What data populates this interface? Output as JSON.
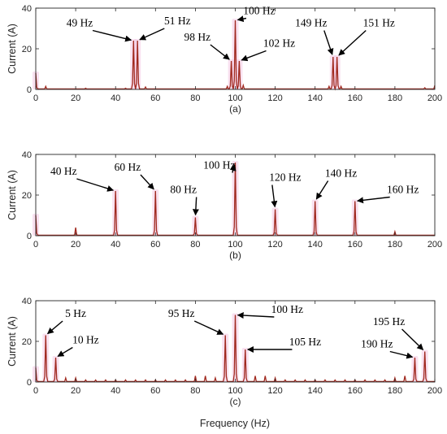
{
  "xlabel": "Frequency (Hz)",
  "colors": {
    "line": "#a0281e",
    "glow": "#f4c8e4",
    "axis": "#262626",
    "arrow": "#000000"
  },
  "chart_data": [
    {
      "type": "line",
      "caption": "(a)",
      "ylabel": "Current (A)",
      "xlim": [
        0,
        200
      ],
      "ylim": [
        0,
        40
      ],
      "xticks": [
        "0",
        "20",
        "40",
        "60",
        "80",
        "100",
        "120",
        "140",
        "160",
        "180",
        "200"
      ],
      "yticks": [
        "0",
        "20",
        "40"
      ],
      "peaks": [
        [
          0,
          8
        ],
        [
          5,
          1.5
        ],
        [
          25,
          0.6
        ],
        [
          45,
          0.6
        ],
        [
          49,
          24
        ],
        [
          51,
          24
        ],
        [
          55,
          1.2
        ],
        [
          96,
          1.5
        ],
        [
          98,
          14
        ],
        [
          100,
          34
        ],
        [
          102,
          14
        ],
        [
          104,
          2
        ],
        [
          147,
          1.5
        ],
        [
          149,
          16
        ],
        [
          151,
          16
        ],
        [
          153,
          1.5
        ],
        [
          195,
          0.8
        ],
        [
          200,
          2
        ]
      ],
      "annotations": [
        {
          "text": "49 Hz",
          "freq": 49,
          "y": 24,
          "tx": 22,
          "ty": 31
        },
        {
          "text": "51 Hz",
          "freq": 51,
          "y": 24,
          "tx": 71,
          "ty": 32
        },
        {
          "text": "100 Hz",
          "freq": 100,
          "y": 34,
          "tx": 112,
          "ty": 37
        },
        {
          "text": "98 Hz",
          "freq": 98,
          "y": 14,
          "tx": 81,
          "ty": 24
        },
        {
          "text": "102 Hz",
          "freq": 102,
          "y": 14,
          "tx": 122,
          "ty": 21
        },
        {
          "text": "149 Hz",
          "freq": 149,
          "y": 16,
          "tx": 138,
          "ty": 31
        },
        {
          "text": "151 Hz",
          "freq": 151,
          "y": 16,
          "tx": 172,
          "ty": 31
        }
      ]
    },
    {
      "type": "line",
      "caption": "(b)",
      "ylabel": "Current (A)",
      "xlim": [
        0,
        200
      ],
      "ylim": [
        0,
        40
      ],
      "xticks": [
        "0",
        "20",
        "40",
        "60",
        "80",
        "100",
        "120",
        "140",
        "160",
        "180",
        "200"
      ],
      "yticks": [
        "0",
        "20",
        "40"
      ],
      "peaks": [
        [
          0,
          10
        ],
        [
          20,
          4
        ],
        [
          40,
          22
        ],
        [
          60,
          22
        ],
        [
          80,
          9
        ],
        [
          100,
          36
        ],
        [
          120,
          13
        ],
        [
          140,
          17
        ],
        [
          160,
          17
        ],
        [
          180,
          2
        ]
      ],
      "annotations": [
        {
          "text": "40 Hz",
          "freq": 40,
          "y": 22,
          "tx": 14,
          "ty": 30
        },
        {
          "text": "60 Hz",
          "freq": 60,
          "y": 22,
          "tx": 46,
          "ty": 32
        },
        {
          "text": "80 Hz",
          "freq": 80,
          "y": 9,
          "tx": 74,
          "ty": 21
        },
        {
          "text": "100 Hz",
          "freq": 100,
          "y": 36,
          "tx": 92,
          "ty": 33
        },
        {
          "text": "120 Hz",
          "freq": 120,
          "y": 13,
          "tx": 125,
          "ty": 27
        },
        {
          "text": "140 Hz",
          "freq": 140,
          "y": 17,
          "tx": 153,
          "ty": 29
        },
        {
          "text": "160 Hz",
          "freq": 160,
          "y": 17,
          "tx": 184,
          "ty": 21
        }
      ]
    },
    {
      "type": "line",
      "caption": "(c)",
      "ylabel": "Current (A)",
      "xlim": [
        0,
        200
      ],
      "ylim": [
        0,
        40
      ],
      "xticks": [
        "0",
        "20",
        "40",
        "60",
        "80",
        "100",
        "120",
        "140",
        "160",
        "180",
        "200"
      ],
      "yticks": [
        "0",
        "20",
        "40"
      ],
      "peaks": [
        [
          0,
          7
        ],
        [
          5,
          23
        ],
        [
          10,
          12
        ],
        [
          15,
          2
        ],
        [
          20,
          2
        ],
        [
          25,
          1
        ],
        [
          30,
          1
        ],
        [
          35,
          1
        ],
        [
          40,
          1
        ],
        [
          45,
          1
        ],
        [
          50,
          1
        ],
        [
          55,
          1
        ],
        [
          60,
          1
        ],
        [
          65,
          1
        ],
        [
          70,
          1
        ],
        [
          75,
          1
        ],
        [
          80,
          3
        ],
        [
          85,
          3
        ],
        [
          90,
          2
        ],
        [
          95,
          23
        ],
        [
          100,
          33
        ],
        [
          105,
          16
        ],
        [
          110,
          3
        ],
        [
          115,
          3
        ],
        [
          120,
          2
        ],
        [
          125,
          1
        ],
        [
          130,
          1
        ],
        [
          135,
          1
        ],
        [
          140,
          1
        ],
        [
          145,
          1
        ],
        [
          150,
          1
        ],
        [
          155,
          1
        ],
        [
          160,
          1
        ],
        [
          165,
          1
        ],
        [
          170,
          1
        ],
        [
          175,
          1
        ],
        [
          180,
          2
        ],
        [
          185,
          3
        ],
        [
          190,
          12
        ],
        [
          195,
          15
        ]
      ],
      "annotations": [
        {
          "text": "5 Hz",
          "freq": 5,
          "y": 23,
          "tx": 20,
          "ty": 32
        },
        {
          "text": "10 Hz",
          "freq": 10,
          "y": 12,
          "tx": 25,
          "ty": 19
        },
        {
          "text": "95 Hz",
          "freq": 95,
          "y": 23,
          "tx": 73,
          "ty": 32
        },
        {
          "text": "100 Hz",
          "freq": 100,
          "y": 33,
          "tx": 126,
          "ty": 34
        },
        {
          "text": "105 Hz",
          "freq": 105,
          "y": 16,
          "tx": 135,
          "ty": 18
        },
        {
          "text": "190 Hz",
          "freq": 190,
          "y": 12,
          "tx": 171,
          "ty": 17
        },
        {
          "text": "195 Hz",
          "freq": 195,
          "y": 15,
          "tx": 177,
          "ty": 28
        }
      ]
    }
  ]
}
